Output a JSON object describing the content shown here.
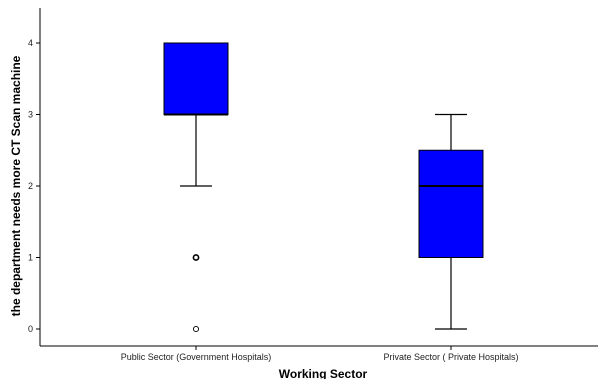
{
  "chart_data": {
    "type": "boxplot",
    "xlabel": "Working Sector",
    "ylabel": "the department needs more CT Scan machine",
    "ylim": [
      0,
      4
    ],
    "yticks": [
      "0",
      "1",
      "2",
      "3",
      "4"
    ],
    "grid": false,
    "legend": "none",
    "box_color": "#0000ff",
    "categories": [
      "Public Sector (Government Hospitals)",
      "Private Sector ( Private Hospitals)"
    ],
    "boxes": [
      {
        "category": "Public Sector (Government Hospitals)",
        "whisker_low": 2,
        "q1": 3,
        "median": 3,
        "q3": 4,
        "whisker_high": 4,
        "outliers": [
          1,
          0
        ]
      },
      {
        "category": "Private Sector ( Private Hospitals)",
        "whisker_low": 0,
        "q1": 1,
        "median": 2,
        "q3": 2.5,
        "whisker_high": 3,
        "outliers": []
      }
    ]
  }
}
